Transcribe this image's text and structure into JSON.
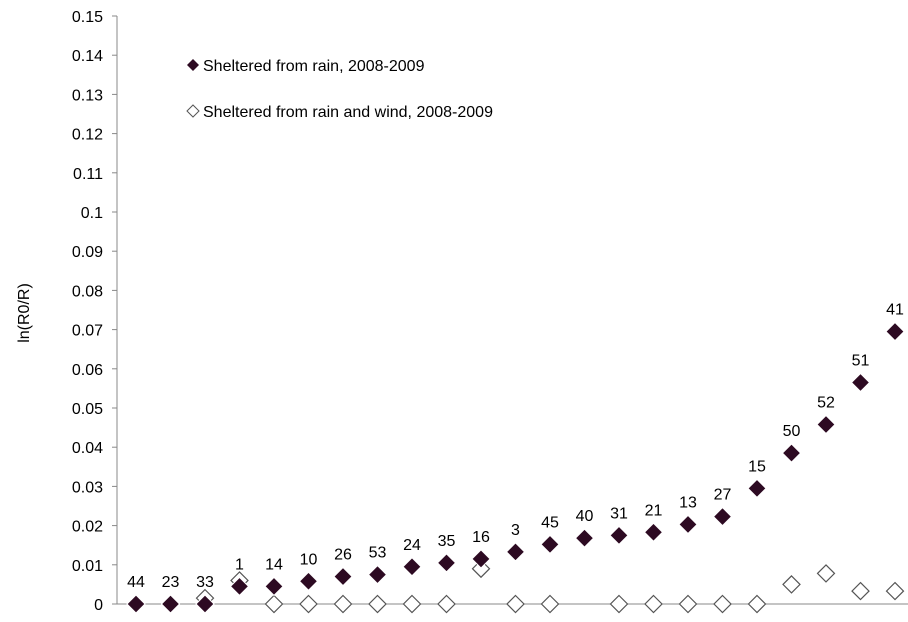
{
  "chart_data": {
    "type": "scatter",
    "ylabel": "ln(R0/R)",
    "ylim": [
      0,
      0.15
    ],
    "yticks": [
      "0",
      "0.01",
      "0.02",
      "0.03",
      "0.04",
      "0.05",
      "0.06",
      "0.07",
      "0.08",
      "0.09",
      "0.1",
      "0.11",
      "0.12",
      "0.13",
      "0.14",
      "0.15"
    ],
    "grid": false,
    "legend": "top-left, inside plot",
    "series": [
      {
        "name": "Sheltered from rain, 2008-2009",
        "marker": "filled-diamond",
        "color": "#2d0a22",
        "labels": [
          "44",
          "23",
          "33",
          "1",
          "14",
          "10",
          "26",
          "53",
          "24",
          "35",
          "16",
          "3",
          "45",
          "40",
          "31",
          "21",
          "13",
          "27",
          "15",
          "50",
          "52",
          "51",
          "41"
        ],
        "values": [
          0.0,
          0.0,
          0.0,
          0.0045,
          0.0045,
          0.0058,
          0.007,
          0.0075,
          0.0095,
          0.0105,
          0.0115,
          0.0133,
          0.0152,
          0.0168,
          0.0175,
          0.0183,
          0.0203,
          0.0223,
          0.0295,
          0.0385,
          0.0458,
          0.0565,
          0.0695
        ]
      },
      {
        "name": "Sheltered from rain and wind, 2008-2009",
        "marker": "open-diamond",
        "color": "#555555",
        "values": [
          null,
          null,
          0.0015,
          0.006,
          0.0,
          0.0,
          0.0,
          0.0,
          0.0,
          0.0,
          0.009,
          0.0,
          0.0,
          null,
          0.0,
          0.0,
          0.0,
          0.0,
          0.0,
          0.005,
          0.0078,
          0.0033,
          0.0033
        ]
      }
    ]
  }
}
